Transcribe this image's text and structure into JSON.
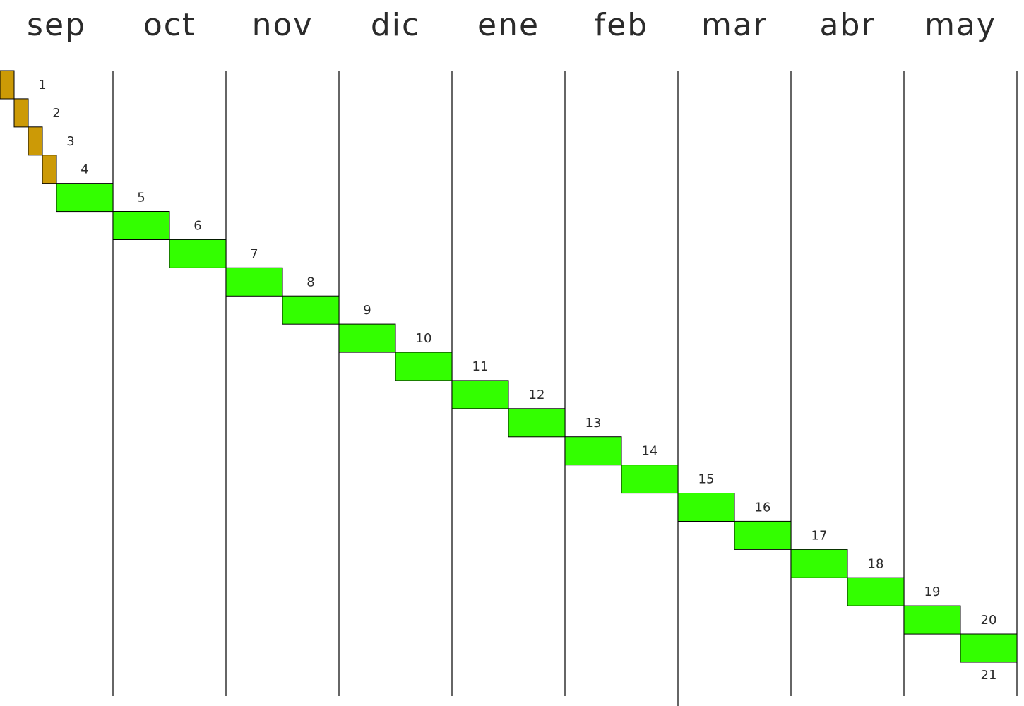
{
  "colors": {
    "prelim": "#cc9a06",
    "main": "#33ff00",
    "grid": "#000000",
    "text": "#2b2b2b"
  },
  "chart_data": {
    "type": "bar",
    "subtype": "gantt",
    "title": "",
    "xlabel": "",
    "ylabel": "",
    "months": [
      "sep",
      "oct",
      "nov",
      "dic",
      "ene",
      "feb",
      "mar",
      "abr",
      "may"
    ],
    "x_unit": "weeks",
    "xlim": [
      0,
      18
    ],
    "grid": "vertical lines at month boundaries",
    "legend": "none",
    "tasks": [
      {
        "label": "1",
        "start": 0,
        "duration": 0.25,
        "color": "prelim"
      },
      {
        "label": "2",
        "start": 0.25,
        "duration": 0.25,
        "color": "prelim"
      },
      {
        "label": "3",
        "start": 0.5,
        "duration": 0.25,
        "color": "prelim"
      },
      {
        "label": "4",
        "start": 0.75,
        "duration": 0.25,
        "color": "prelim"
      },
      {
        "label": "5",
        "start": 1,
        "duration": 1,
        "color": "main"
      },
      {
        "label": "6",
        "start": 2,
        "duration": 1,
        "color": "main"
      },
      {
        "label": "7",
        "start": 3,
        "duration": 1,
        "color": "main"
      },
      {
        "label": "8",
        "start": 4,
        "duration": 1,
        "color": "main"
      },
      {
        "label": "9",
        "start": 5,
        "duration": 1,
        "color": "main"
      },
      {
        "label": "10",
        "start": 6,
        "duration": 1,
        "color": "main"
      },
      {
        "label": "11",
        "start": 7,
        "duration": 1,
        "color": "main"
      },
      {
        "label": "12",
        "start": 8,
        "duration": 1,
        "color": "main"
      },
      {
        "label": "13",
        "start": 9,
        "duration": 1,
        "color": "main"
      },
      {
        "label": "14",
        "start": 10,
        "duration": 1,
        "color": "main"
      },
      {
        "label": "15",
        "start": 11,
        "duration": 1,
        "color": "main"
      },
      {
        "label": "16",
        "start": 12,
        "duration": 1,
        "color": "main"
      },
      {
        "label": "17",
        "start": 13,
        "duration": 1,
        "color": "main"
      },
      {
        "label": "18",
        "start": 14,
        "duration": 1,
        "color": "main"
      },
      {
        "label": "19",
        "start": 15,
        "duration": 1,
        "color": "main"
      },
      {
        "label": "20",
        "start": 16,
        "duration": 1,
        "color": "main"
      },
      {
        "label": "21",
        "start": 17,
        "duration": 1,
        "color": "main"
      }
    ]
  }
}
